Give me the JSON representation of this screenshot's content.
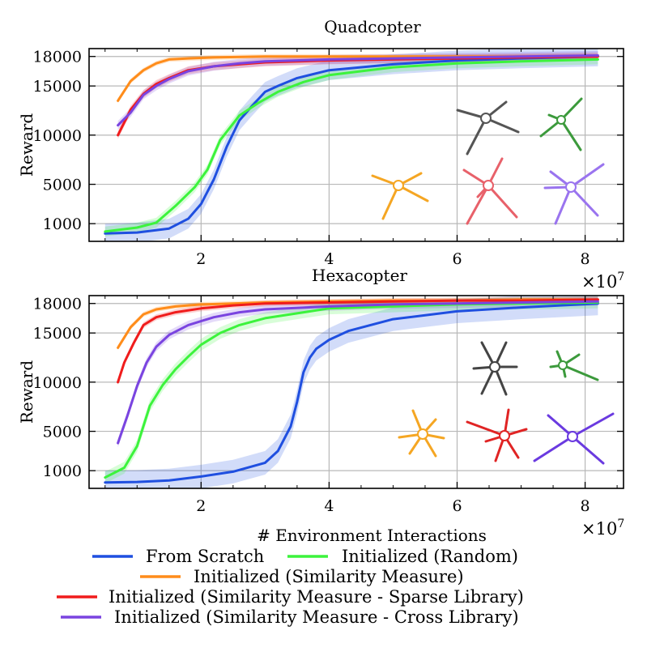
{
  "colors": {
    "from_scratch": "#1f4fe0",
    "random": "#3cf33c",
    "similarity": "#ff8c1a",
    "sparse": "#f01c1c",
    "cross": "#7a44e0"
  },
  "legend": [
    {
      "key": "from_scratch",
      "label": "From Scratch"
    },
    {
      "key": "random",
      "label": "Initialized (Random)"
    },
    {
      "key": "similarity",
      "label": "Initialized (Similarity Measure)"
    },
    {
      "key": "sparse",
      "label": "Initialized (Similarity Measure - Sparse Library)"
    },
    {
      "key": "cross",
      "label": "Initialized (Similarity Measure - Cross Library)"
    }
  ],
  "chart_data": [
    {
      "type": "line",
      "title": "Quadcopter",
      "xlabel": "",
      "ylabel": "Reward",
      "x_multiplier": "×10",
      "x_multiplier_exp": "7",
      "xlim": [
        0.25,
        8.6
      ],
      "ylim": [
        -800,
        18800
      ],
      "xticks": [
        2,
        4,
        6,
        8
      ],
      "yticks": [
        1000,
        5000,
        10000,
        15000,
        18000
      ],
      "grid": true,
      "legend_position": "below",
      "series": [
        {
          "key": "from_scratch",
          "name": "From Scratch",
          "band": 1000,
          "x": [
            0.5,
            1.0,
            1.5,
            1.8,
            2.0,
            2.2,
            2.4,
            2.6,
            2.8,
            3.0,
            3.2,
            3.5,
            4.0,
            5.0,
            6.0,
            7.0,
            8.2
          ],
          "y": [
            0,
            100,
            500,
            1500,
            3000,
            5500,
            8800,
            11500,
            13000,
            14400,
            15000,
            15800,
            16600,
            17200,
            17600,
            17800,
            18000
          ]
        },
        {
          "key": "random",
          "name": "Initialized (Random)",
          "band": 500,
          "x": [
            0.5,
            1.0,
            1.3,
            1.6,
            1.9,
            2.1,
            2.3,
            2.6,
            2.9,
            3.2,
            3.6,
            4.0,
            5.0,
            6.0,
            7.0,
            8.2
          ],
          "y": [
            200,
            600,
            1100,
            2800,
            4700,
            6500,
            9500,
            12000,
            13300,
            14400,
            15400,
            16100,
            16900,
            17300,
            17500,
            17700
          ]
        },
        {
          "key": "similarity",
          "name": "Initialized (Similarity Measure)",
          "band": 250,
          "x": [
            0.7,
            0.9,
            1.1,
            1.3,
            1.5,
            1.8,
            2.2,
            3.0,
            4.0,
            5.0,
            6.0,
            7.0,
            8.2
          ],
          "y": [
            13500,
            15500,
            16600,
            17300,
            17700,
            17800,
            17900,
            18000,
            18000,
            18000,
            18000,
            18000,
            18000
          ]
        },
        {
          "key": "sparse",
          "name": "Initialized (Similarity Measure - Sparse Library)",
          "band": 400,
          "x": [
            0.7,
            0.9,
            1.1,
            1.3,
            1.5,
            1.8,
            2.2,
            2.6,
            3.0,
            4.0,
            5.0,
            6.0,
            7.0,
            8.2
          ],
          "y": [
            10000,
            12600,
            14200,
            15200,
            15800,
            16600,
            17000,
            17200,
            17400,
            17600,
            17700,
            17800,
            17900,
            18000
          ]
        },
        {
          "key": "cross",
          "name": "Initialized (Similarity Measure - Cross Library)",
          "band": 450,
          "x": [
            0.7,
            0.9,
            1.1,
            1.3,
            1.5,
            1.8,
            2.2,
            2.6,
            3.0,
            4.0,
            5.0,
            6.0,
            7.0,
            8.2
          ],
          "y": [
            11000,
            12300,
            14100,
            15000,
            15700,
            16500,
            17000,
            17300,
            17500,
            17700,
            17800,
            17900,
            18000,
            18100
          ]
        }
      ]
    },
    {
      "type": "line",
      "title": "Hexacopter",
      "xlabel": "# Environment Interactions",
      "ylabel": "Reward",
      "x_multiplier": "×10",
      "x_multiplier_exp": "7",
      "xlim": [
        0.25,
        8.6
      ],
      "ylim": [
        -800,
        18800
      ],
      "xticks": [
        2,
        4,
        6,
        8
      ],
      "yticks": [
        1000,
        5000,
        10000,
        15000,
        18000
      ],
      "grid": true,
      "legend_position": "below",
      "series": [
        {
          "key": "from_scratch",
          "name": "From Scratch",
          "band": 1200,
          "x": [
            0.5,
            1.0,
            1.5,
            2.0,
            2.5,
            3.0,
            3.2,
            3.4,
            3.5,
            3.6,
            3.7,
            3.8,
            4.0,
            4.3,
            5.0,
            6.0,
            7.0,
            8.2
          ],
          "y": [
            -200,
            -150,
            0,
            400,
            900,
            1800,
            3000,
            5500,
            8000,
            11000,
            12500,
            13400,
            14300,
            15200,
            16400,
            17200,
            17600,
            18000
          ]
        },
        {
          "key": "random",
          "name": "Initialized (Random)",
          "band": 600,
          "x": [
            0.5,
            0.8,
            1.0,
            1.2,
            1.4,
            1.6,
            1.8,
            2.0,
            2.3,
            2.6,
            3.0,
            3.5,
            4.0,
            5.0,
            6.0,
            7.0,
            8.2
          ],
          "y": [
            300,
            1300,
            3500,
            7600,
            9700,
            11300,
            12600,
            13800,
            15000,
            15800,
            16500,
            17000,
            17500,
            17700,
            17900,
            18000,
            18100
          ]
        },
        {
          "key": "similarity",
          "name": "Initialized (Similarity Measure)",
          "band": 250,
          "x": [
            0.7,
            0.9,
            1.1,
            1.3,
            1.6,
            2.0,
            2.5,
            3.0,
            4.0,
            5.0,
            6.0,
            7.0,
            8.2
          ],
          "y": [
            13500,
            15600,
            16900,
            17400,
            17700,
            17900,
            18000,
            18100,
            18200,
            18300,
            18300,
            18400,
            18400
          ]
        },
        {
          "key": "sparse",
          "name": "Initialized (Similarity Measure - Sparse Library)",
          "band": 300,
          "x": [
            0.7,
            0.8,
            0.95,
            1.1,
            1.3,
            1.6,
            2.0,
            2.5,
            3.0,
            4.0,
            5.0,
            6.0,
            7.0,
            8.2
          ],
          "y": [
            10000,
            12000,
            14000,
            15800,
            16600,
            17100,
            17500,
            17800,
            18000,
            18100,
            18200,
            18300,
            18300,
            18400
          ]
        },
        {
          "key": "cross",
          "name": "Initialized (Similarity Measure - Cross Library)",
          "band": 450,
          "x": [
            0.7,
            0.85,
            1.0,
            1.15,
            1.3,
            1.5,
            1.8,
            2.2,
            2.6,
            3.0,
            4.0,
            5.0,
            6.0,
            7.0,
            8.2
          ],
          "y": [
            3800,
            6600,
            9600,
            12000,
            13600,
            14800,
            15800,
            16600,
            17100,
            17400,
            17700,
            17900,
            18000,
            18100,
            18200
          ]
        }
      ]
    }
  ]
}
